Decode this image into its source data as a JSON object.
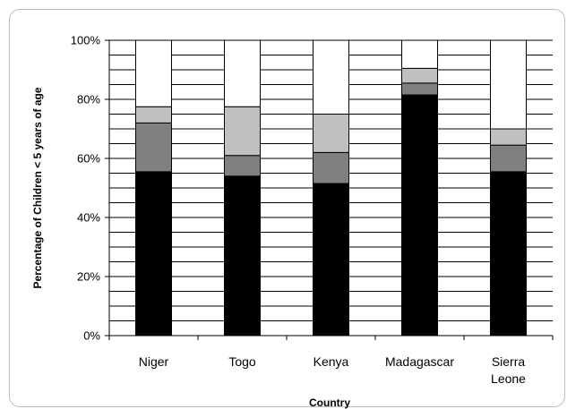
{
  "chart_data": {
    "type": "bar",
    "stacked": true,
    "title": "",
    "xlabel": "Country",
    "ylabel": "Percentage of Children < 5 years of age",
    "categories": [
      [
        "Niger"
      ],
      [
        "Togo"
      ],
      [
        "Kenya"
      ],
      [
        "Madagascar"
      ],
      [
        "Sierra",
        "Leone"
      ]
    ],
    "ylim": [
      0,
      100
    ],
    "y_tick_labels": [
      "0%",
      "20%",
      "40%",
      "60%",
      "80%",
      "100%"
    ],
    "gridlines": "every 5%",
    "legend": "none",
    "series": [
      {
        "color": "#000000",
        "values": [
          55.5,
          54,
          51.5,
          81.5,
          55.5
        ]
      },
      {
        "color": "#808080",
        "values": [
          16.5,
          7,
          10.5,
          4,
          9
        ]
      },
      {
        "color": "#c0c0c0",
        "values": [
          5.5,
          16.5,
          13,
          5,
          5.5
        ]
      },
      {
        "color": "#ffffff",
        "values": [
          22.5,
          22.5,
          25,
          9.5,
          30
        ]
      }
    ]
  }
}
